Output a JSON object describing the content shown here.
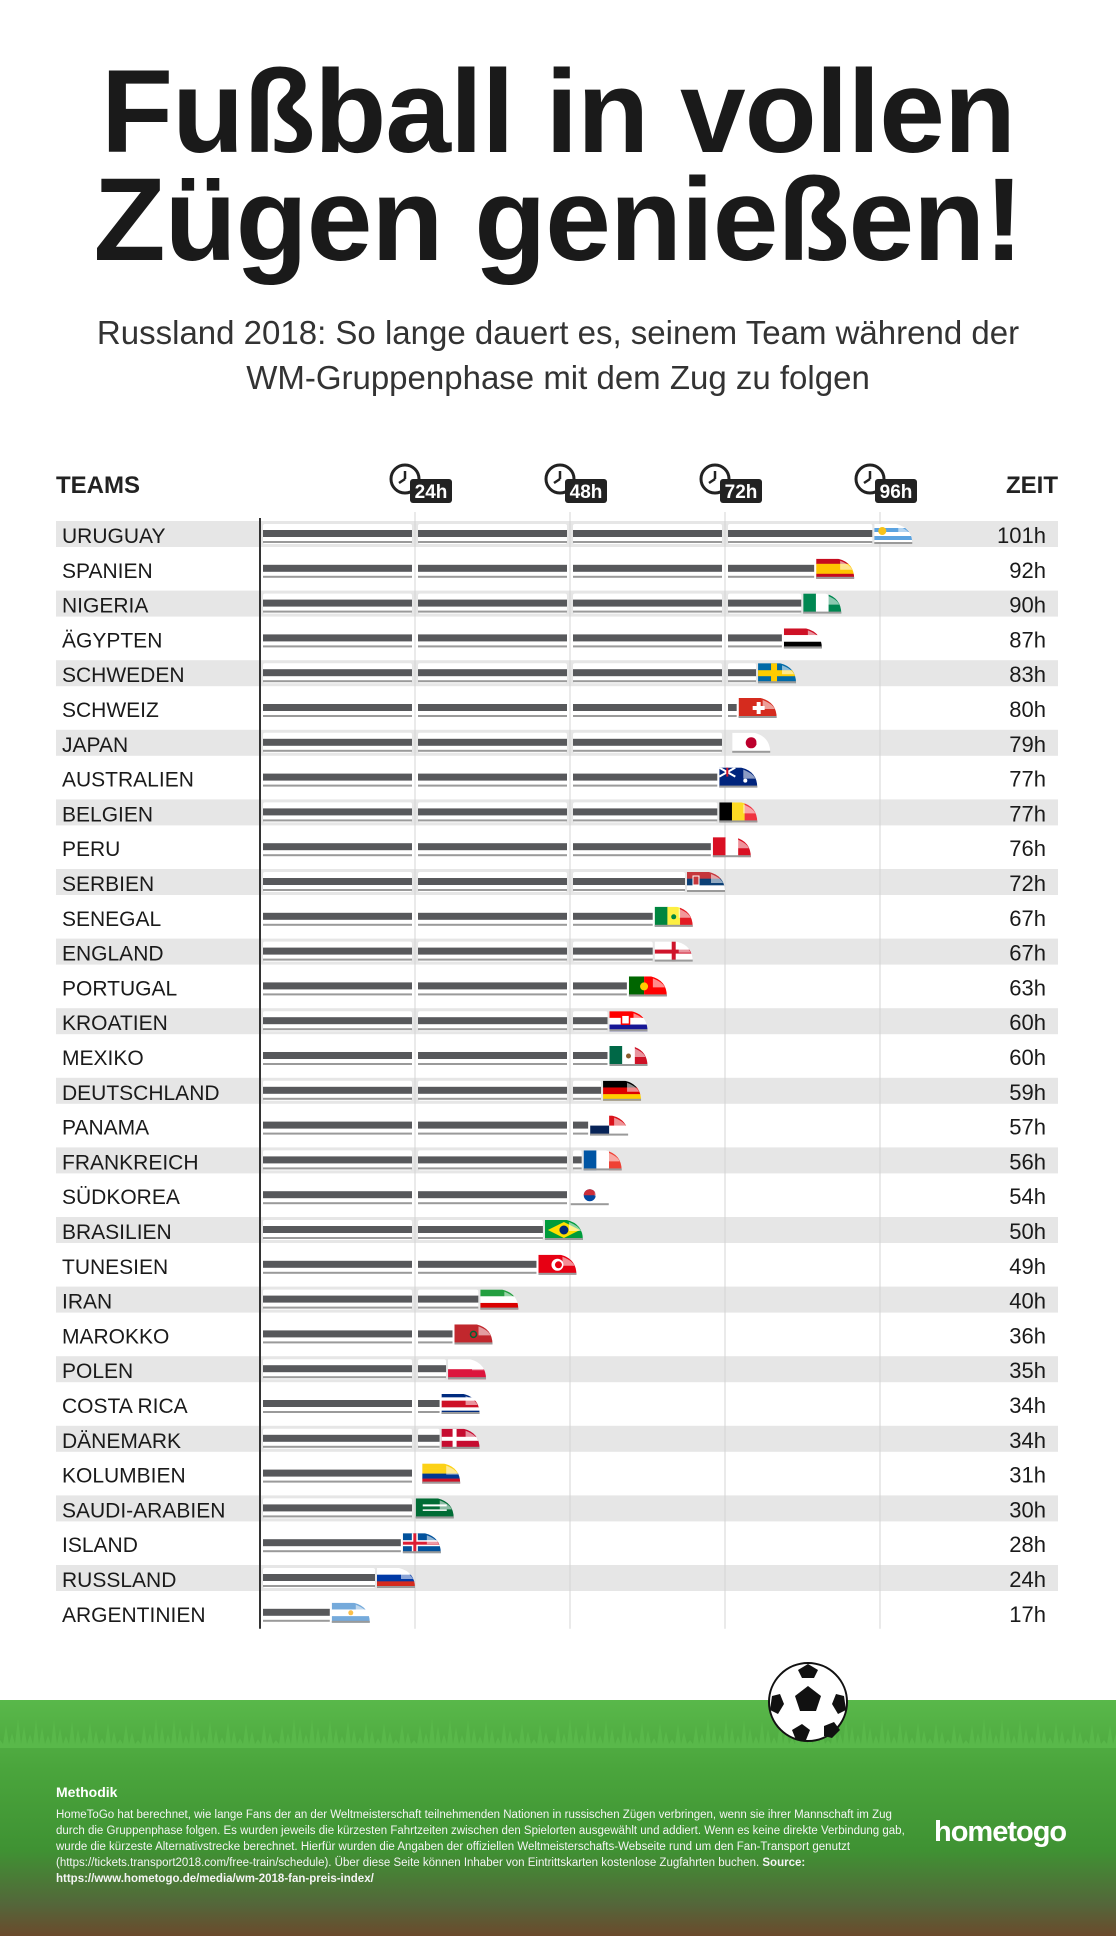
{
  "title_line1": "Fußball in vollen",
  "title_line2": "Zügen genießen!",
  "subtitle_line1": "Russland 2018: So lange dauert es, seinem Team während der",
  "subtitle_line2": "WM-Gruppenphase mit dem Zug zu folgen",
  "col_teams": "TEAMS",
  "col_time": "ZEIT",
  "colors": {
    "train": "#57585b",
    "grid": "#d4d4d4",
    "row_alt": "#e6e6e6",
    "text": "#1a1a1a"
  },
  "chart_data": {
    "type": "bar",
    "orientation": "horizontal",
    "xlim": [
      0,
      101
    ],
    "ticks": [
      "24h",
      "48h",
      "72h",
      "96h"
    ],
    "tick_values": [
      24,
      48,
      72,
      96
    ],
    "categories": [
      "URUGUAY",
      "SPANIEN",
      "NIGERIA",
      "ÄGYPTEN",
      "SCHWEDEN",
      "SCHWEIZ",
      "JAPAN",
      "AUSTRALIEN",
      "BELGIEN",
      "PERU",
      "SERBIEN",
      "SENEGAL",
      "ENGLAND",
      "PORTUGAL",
      "KROATIEN",
      "MEXIKO",
      "DEUTSCHLAND",
      "PANAMA",
      "FRANKREICH",
      "SÜDKOREA",
      "BRASILIEN",
      "TUNESIEN",
      "IRAN",
      "MAROKKO",
      "POLEN",
      "COSTA RICA",
      "DÄNEMARK",
      "KOLUMBIEN",
      "SAUDI-ARABIEN",
      "ISLAND",
      "RUSSLAND",
      "ARGENTINIEN"
    ],
    "values": [
      101,
      92,
      90,
      87,
      83,
      80,
      79,
      77,
      77,
      76,
      72,
      67,
      67,
      63,
      60,
      60,
      59,
      57,
      56,
      54,
      50,
      49,
      40,
      36,
      35,
      34,
      34,
      31,
      30,
      28,
      24,
      17
    ],
    "labels": [
      "101h",
      "92h",
      "90h",
      "87h",
      "83h",
      "80h",
      "79h",
      "77h",
      "77h",
      "76h",
      "72h",
      "67h",
      "67h",
      "63h",
      "60h",
      "60h",
      "59h",
      "57h",
      "56h",
      "54h",
      "50h",
      "49h",
      "40h",
      "36h",
      "35h",
      "34h",
      "34h",
      "31h",
      "30h",
      "28h",
      "24h",
      "17h"
    ],
    "flags": [
      "uruguay",
      "spain",
      "nigeria",
      "egypt",
      "sweden",
      "switzerland",
      "japan",
      "australia",
      "belgium",
      "peru",
      "serbia",
      "senegal",
      "england",
      "portugal",
      "croatia",
      "mexico",
      "germany",
      "panama",
      "france",
      "south-korea",
      "brazil",
      "tunisia",
      "iran",
      "morocco",
      "poland",
      "costa-rica",
      "denmark",
      "colombia",
      "saudi-arabia",
      "iceland",
      "russia",
      "argentina"
    ]
  },
  "methodik_title": "Methodik",
  "methodik_text": "HomeToGo hat berechnet, wie lange Fans der an der Weltmeisterschaft teilnehmenden Nationen in russischen Zügen verbringen, wenn sie ihrer Mannschaft im Zug durch die Gruppenphase folgen. Es wurden jeweils die kürzesten Fahrtzeiten zwischen den Spielorten ausgewählt und addiert. Wenn es keine direkte Verbindung gab, wurde die kürzeste Alternativstrecke berechnet. Hierfür wurden die  Angaben der offiziellen Weltmeisterschafts-Webseite rund um den Fan-Transport genutzt (https://tickets.transport2018.com/free-train/schedule). Über diese Seite können Inhaber von Eintrittskarten kostenlose Zugfahrten buchen.",
  "source_text": "Source: https://www.hometogo.de/media/wm-2018-fan-preis-index/",
  "logo": "hometogo",
  "ball_icon": "soccer-ball-icon"
}
